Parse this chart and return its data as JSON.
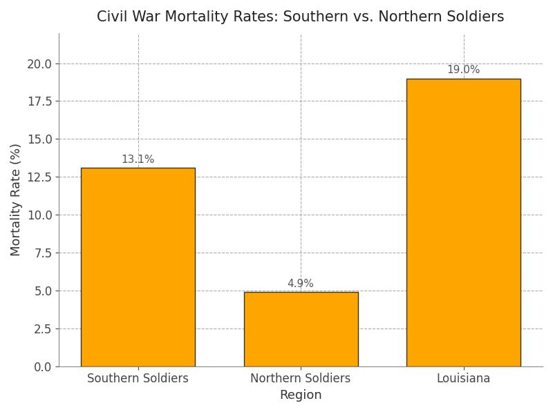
{
  "title": "Civil War Mortality Rates: Southern vs. Northern Soldiers",
  "categories": [
    "Southern Soldiers",
    "Northern Soldiers",
    "Louisiana"
  ],
  "values": [
    13.1,
    4.9,
    19.0
  ],
  "bar_color": "#FFA500",
  "bar_edgecolor": "#333333",
  "xlabel": "Region",
  "ylabel": "Mortality Rate (%)",
  "ylim": [
    0,
    22
  ],
  "yticks": [
    0.0,
    2.5,
    5.0,
    7.5,
    10.0,
    12.5,
    15.0,
    17.5,
    20.0
  ],
  "grid_color": "#AAAAAA",
  "background_color": "#FFFFFF",
  "title_fontsize": 15,
  "label_fontsize": 13,
  "tick_fontsize": 12,
  "annotation_fontsize": 11,
  "annotation_color": "#555555"
}
